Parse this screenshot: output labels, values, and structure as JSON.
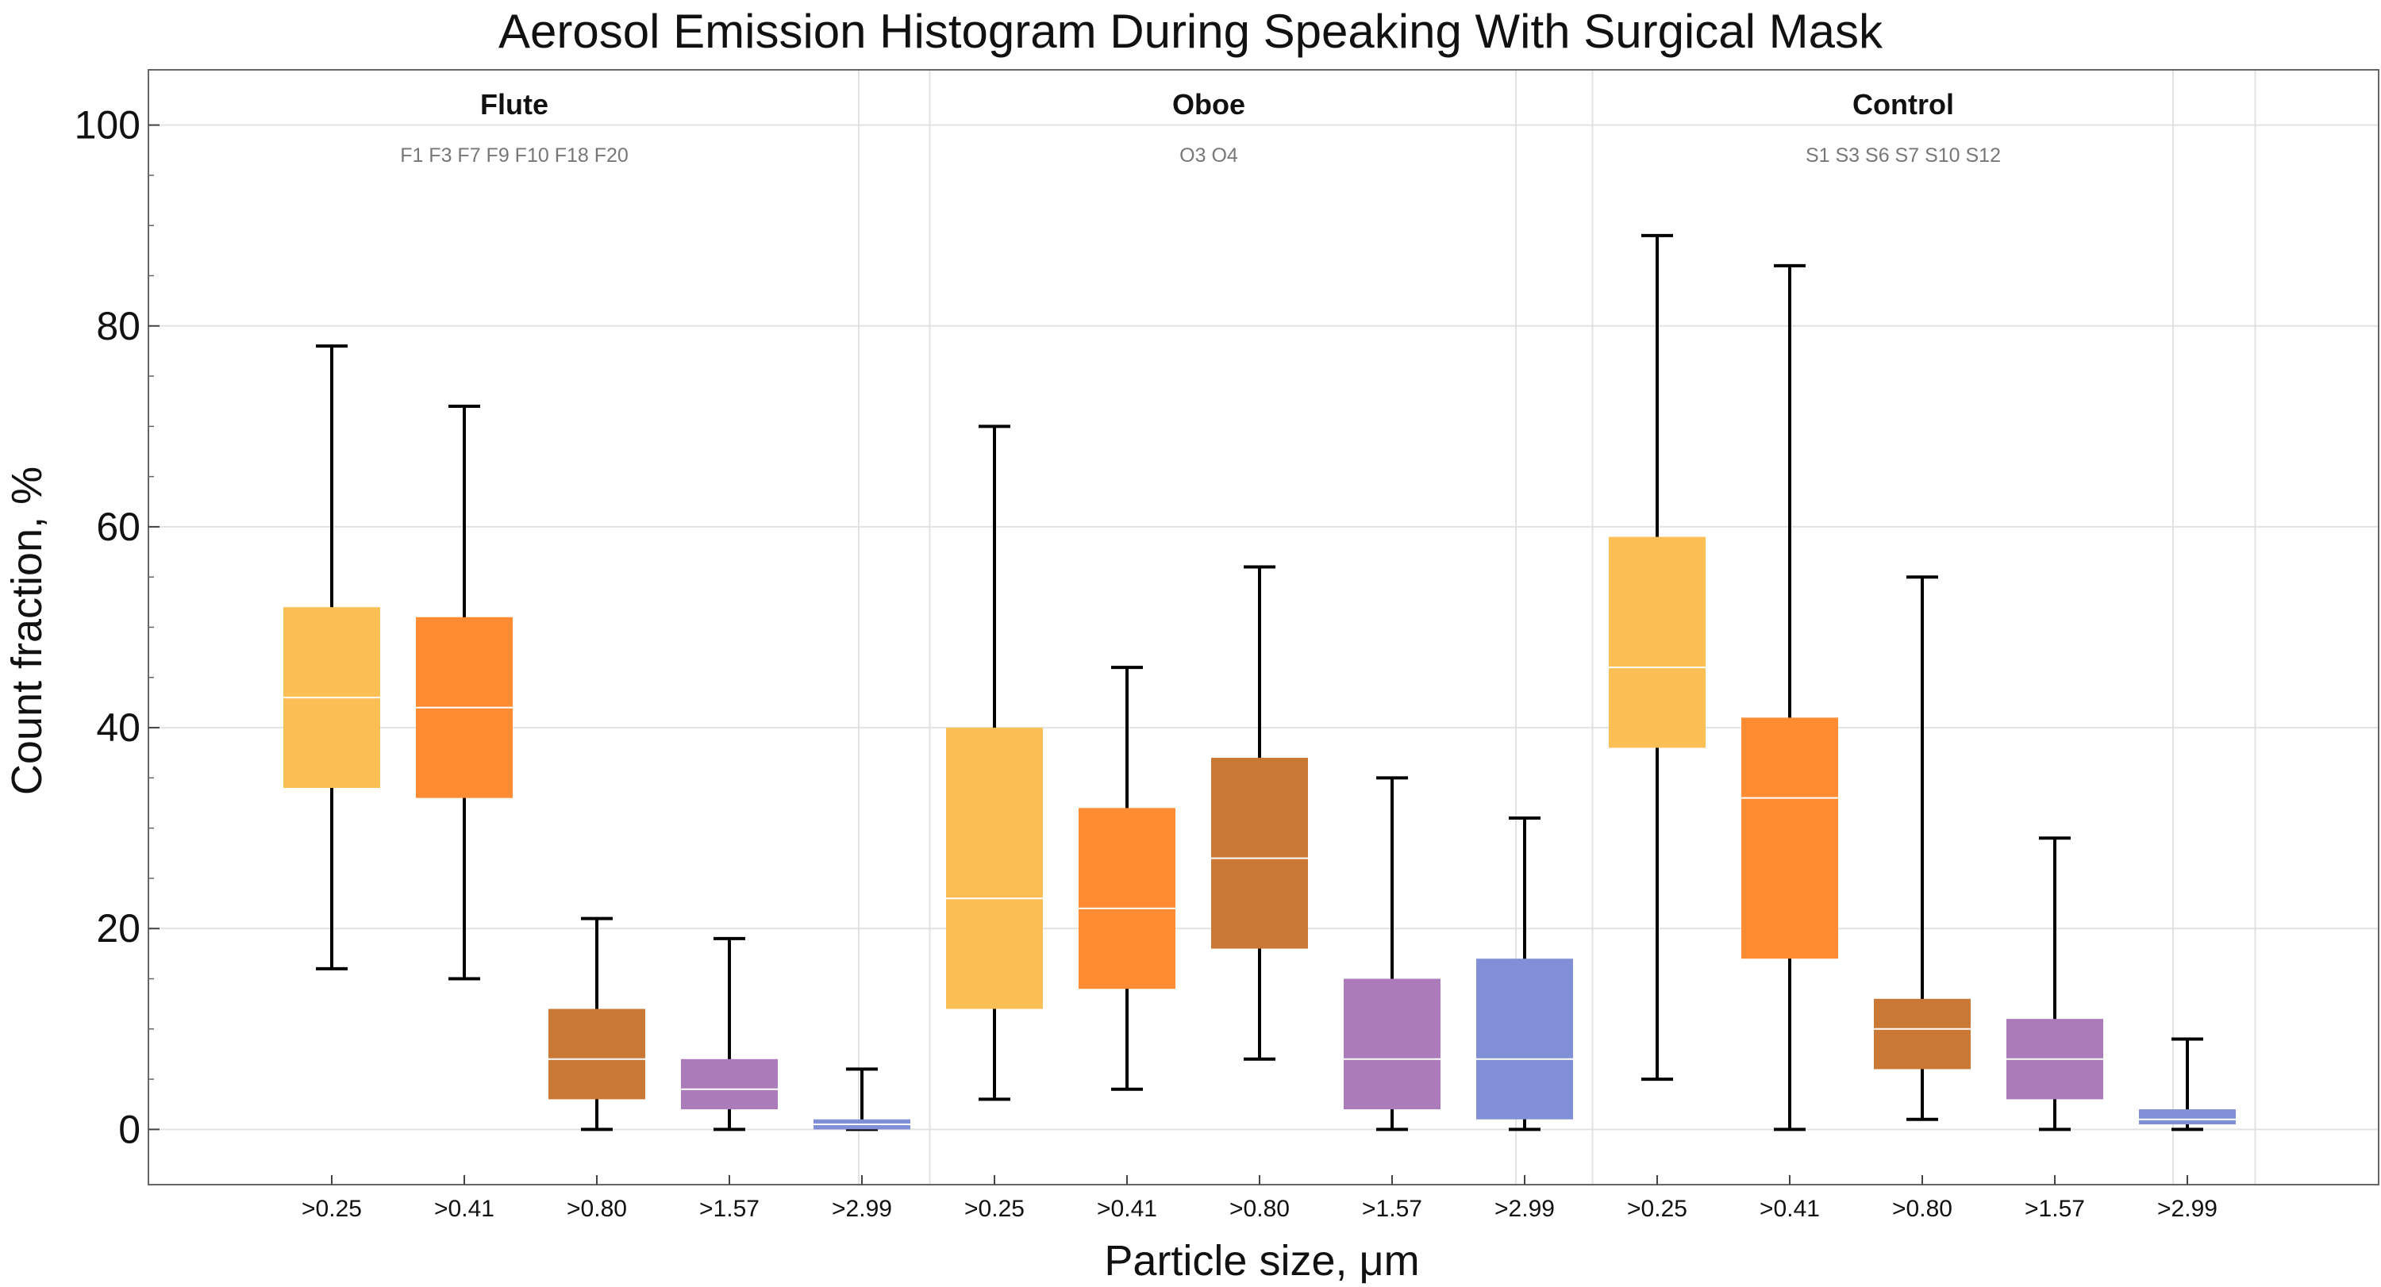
{
  "chart_data": {
    "type": "box",
    "title": "Aerosol Emission Histogram During Speaking With Surgical Mask",
    "xlabel": "Particle size,  μm",
    "ylabel": "Count  fraction,  %",
    "ylim": [
      -5.5,
      105.5
    ],
    "yticks": [
      0,
      20,
      40,
      60,
      80,
      100
    ],
    "grid": true,
    "categories": [
      ">0.25",
      ">0.41",
      ">0.80",
      ">1.57",
      ">2.99"
    ],
    "colors": {
      ">0.25": "#fbbf55",
      ">0.41": "#ff8c33",
      ">0.80": "#c97835",
      ">1.57": "#ab7bba",
      ">2.99": "#808fd6"
    },
    "groups": [
      {
        "name": "Flute",
        "subjects": "F1 F3 F7 F9 F10 F18 F20",
        "boxes": [
          {
            "category": ">0.25",
            "min": 16,
            "q1": 34,
            "median": 43,
            "q3": 52,
            "max": 78
          },
          {
            "category": ">0.41",
            "min": 15,
            "q1": 33,
            "median": 42,
            "q3": 51,
            "max": 72
          },
          {
            "category": ">0.80",
            "min": 0,
            "q1": 3,
            "median": 7,
            "q3": 12,
            "max": 21
          },
          {
            "category": ">1.57",
            "min": 0,
            "q1": 2,
            "median": 4,
            "q3": 7,
            "max": 19
          },
          {
            "category": ">2.99",
            "min": 0,
            "q1": 0,
            "median": 0.5,
            "q3": 1,
            "max": 6
          }
        ]
      },
      {
        "name": "Oboe",
        "subjects": "O3 O4",
        "boxes": [
          {
            "category": ">0.25",
            "min": 3,
            "q1": 12,
            "median": 23,
            "q3": 40,
            "max": 70
          },
          {
            "category": ">0.41",
            "min": 4,
            "q1": 14,
            "median": 22,
            "q3": 32,
            "max": 46
          },
          {
            "category": ">0.80",
            "min": 7,
            "q1": 18,
            "median": 27,
            "q3": 37,
            "max": 56
          },
          {
            "category": ">1.57",
            "min": 0,
            "q1": 2,
            "median": 7,
            "q3": 15,
            "max": 35
          },
          {
            "category": ">2.99",
            "min": 0,
            "q1": 1,
            "median": 7,
            "q3": 17,
            "max": 31
          }
        ]
      },
      {
        "name": "Control",
        "subjects": "S1 S3 S6 S7 S10 S12",
        "boxes": [
          {
            "category": ">0.25",
            "min": 5,
            "q1": 38,
            "median": 46,
            "q3": 59,
            "max": 89
          },
          {
            "category": ">0.41",
            "min": 0,
            "q1": 17,
            "median": 33,
            "q3": 41,
            "max": 86
          },
          {
            "category": ">0.80",
            "min": 1,
            "q1": 6,
            "median": 10,
            "q3": 13,
            "max": 55
          },
          {
            "category": ">1.57",
            "min": 0,
            "q1": 3,
            "median": 7,
            "q3": 11,
            "max": 29
          },
          {
            "category": ">2.99",
            "min": 0,
            "q1": 0.5,
            "median": 1,
            "q3": 2,
            "max": 9
          }
        ]
      }
    ]
  }
}
